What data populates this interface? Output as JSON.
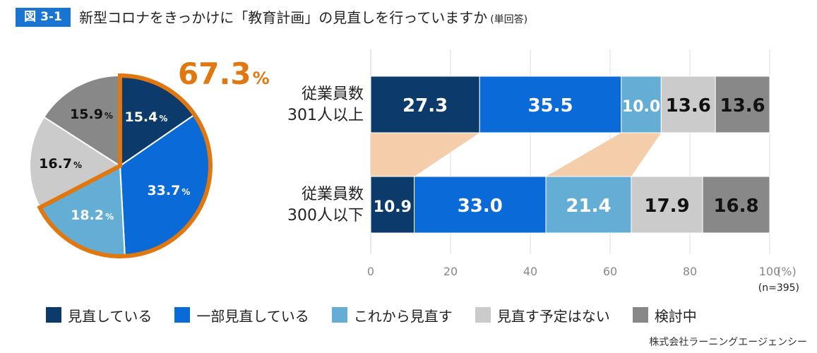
{
  "header": {
    "figure_label": "図 3-1",
    "title": "新型コロナをきっかけに「教育計画」の見直しを行っていますか",
    "title_note": "(単回答)"
  },
  "colors": {
    "dark_navy": "#0b3a6b",
    "blue": "#0a6ad8",
    "light_blue": "#64aed6",
    "light_gray": "#cbcbcb",
    "dark_gray": "#888888",
    "accent_orange": "#e0780f",
    "connector_peach": "#f4ceab"
  },
  "chart_data": [
    {
      "type": "pie",
      "slices": [
        {
          "label": "見直している",
          "value": 15.4,
          "value_text": "15.4",
          "unit": "%",
          "color": "#0b3a6b"
        },
        {
          "label": "一部見直している",
          "value": 33.7,
          "value_text": "33.7",
          "unit": "%",
          "color": "#0a6ad8"
        },
        {
          "label": "これから見直す",
          "value": 18.2,
          "value_text": "18.2",
          "unit": "%",
          "color": "#64aed6"
        },
        {
          "label": "見直す予定はない",
          "value": 16.7,
          "value_text": "16.7",
          "unit": "%",
          "color": "#cbcbcb"
        },
        {
          "label": "検討中",
          "value": 15.9,
          "value_text": "15.9",
          "unit": "%",
          "color": "#888888"
        }
      ],
      "highlight": {
        "value_text": "67.3",
        "unit": "%",
        "slices": [
          "見直している",
          "一部見直している",
          "これから見直す"
        ]
      }
    },
    {
      "type": "bar",
      "orientation": "horizontal",
      "stacked": true,
      "categories": [
        {
          "line1": "従業員数",
          "line2": "301人以上"
        },
        {
          "line1": "従業員数",
          "line2": "300人以下"
        }
      ],
      "series": [
        {
          "name": "見直している",
          "color": "#0b3a6b",
          "label_color": "#ffffff",
          "values": [
            27.3,
            10.9
          ]
        },
        {
          "name": "一部見直している",
          "color": "#0a6ad8",
          "label_color": "#ffffff",
          "values": [
            35.5,
            33.0
          ]
        },
        {
          "name": "これから見直す",
          "color": "#64aed6",
          "label_color": "#ffffff",
          "values": [
            10.0,
            21.4
          ]
        },
        {
          "name": "見直す予定はない",
          "color": "#cbcbcb",
          "label_color": "#111111",
          "values": [
            13.6,
            17.9
          ]
        },
        {
          "name": "検討中",
          "color": "#888888",
          "label_color": "#111111",
          "values": [
            13.6,
            16.8
          ]
        }
      ],
      "xlim": [
        0,
        100
      ],
      "xticks": [
        "0",
        "20",
        "40",
        "60",
        "80",
        "100"
      ],
      "x_unit": "(%)",
      "n_note": "(n=395)",
      "grid": true,
      "connector_series": [
        "見直している",
        "一部見直している",
        "これから見直す"
      ]
    }
  ],
  "legend": [
    {
      "label": "見直している",
      "color": "#0b3a6b"
    },
    {
      "label": "一部見直している",
      "color": "#0a6ad8"
    },
    {
      "label": "これから見直す",
      "color": "#64aed6"
    },
    {
      "label": "見直す予定はない",
      "color": "#cbcbcb"
    },
    {
      "label": "検討中",
      "color": "#888888"
    }
  ],
  "source": "株式会社ラーニングエージェンシー"
}
